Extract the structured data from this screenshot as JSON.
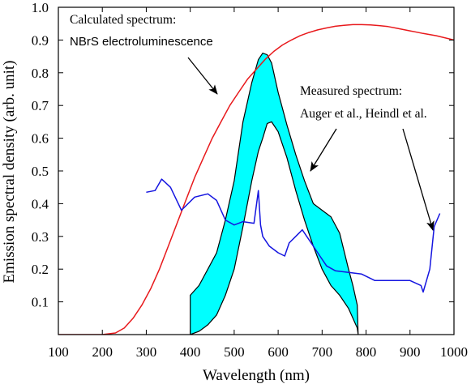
{
  "chart_data": {
    "type": "line",
    "xlabel": "Wavelength (nm)",
    "ylabel": "Emission spectral density (arb. unit)",
    "xlim": [
      100,
      1000
    ],
    "ylim": [
      0,
      1.0
    ],
    "x_ticks": [
      100,
      200,
      300,
      400,
      500,
      600,
      700,
      800,
      900,
      1000
    ],
    "y_ticks": [
      0.1,
      0.2,
      0.3,
      0.4,
      0.5,
      0.6,
      0.7,
      0.8,
      0.9,
      1.0
    ],
    "x_tick_labels": [
      "100",
      "200",
      "300",
      "400",
      "500",
      "600",
      "700",
      "800",
      "900",
      "1000"
    ],
    "y_tick_labels": [
      "0.1",
      "0.2",
      "0.3",
      "0.4",
      "0.5",
      "0.6",
      "0.7",
      "0.8",
      "0.9",
      "1.0"
    ],
    "grid": false,
    "series": [
      {
        "name": "Calculated spectrum",
        "kind": "line",
        "color": "#e8191c",
        "x": [
          100,
          200,
          230,
          250,
          270,
          290,
          310,
          330,
          350,
          370,
          390,
          410,
          430,
          450,
          470,
          490,
          510,
          530,
          550,
          570,
          590,
          610,
          630,
          650,
          670,
          690,
          710,
          730,
          750,
          770,
          790,
          810,
          830,
          850,
          870,
          900,
          930,
          960,
          1000
        ],
        "y": [
          0.0,
          0.0,
          0.005,
          0.02,
          0.05,
          0.09,
          0.14,
          0.2,
          0.27,
          0.34,
          0.41,
          0.48,
          0.54,
          0.6,
          0.65,
          0.7,
          0.74,
          0.78,
          0.81,
          0.84,
          0.865,
          0.885,
          0.9,
          0.913,
          0.923,
          0.931,
          0.937,
          0.942,
          0.945,
          0.947,
          0.947,
          0.946,
          0.944,
          0.941,
          0.936,
          0.928,
          0.92,
          0.913,
          0.9
        ]
      },
      {
        "name": "Measured spectrum (upper bound)",
        "kind": "band-upper",
        "color": "#00ffff",
        "x": [
          400,
          420,
          440,
          460,
          480,
          500,
          520,
          540,
          555,
          565,
          575,
          585,
          600,
          620,
          640,
          660,
          680,
          700,
          720,
          740,
          760,
          770,
          780,
          782
        ],
        "y": [
          0.12,
          0.15,
          0.2,
          0.25,
          0.35,
          0.47,
          0.65,
          0.77,
          0.84,
          0.86,
          0.855,
          0.83,
          0.74,
          0.64,
          0.55,
          0.47,
          0.4,
          0.38,
          0.36,
          0.31,
          0.2,
          0.15,
          0.09,
          0.0
        ]
      },
      {
        "name": "Measured spectrum (lower bound)",
        "kind": "band-lower",
        "color": "#00ffff",
        "x": [
          400,
          420,
          440,
          460,
          480,
          500,
          520,
          540,
          555,
          565,
          575,
          585,
          600,
          620,
          640,
          660,
          680,
          700,
          720,
          740,
          760,
          770,
          780,
          782
        ],
        "y": [
          0.0,
          0.01,
          0.03,
          0.06,
          0.12,
          0.2,
          0.33,
          0.47,
          0.56,
          0.6,
          0.645,
          0.65,
          0.62,
          0.54,
          0.44,
          0.35,
          0.27,
          0.2,
          0.15,
          0.12,
          0.08,
          0.05,
          0.02,
          0.0
        ]
      },
      {
        "name": "Measured spectrum (blue)",
        "kind": "line",
        "color": "#1515e0",
        "x": [
          300,
          320,
          335,
          355,
          380,
          410,
          440,
          460,
          480,
          500,
          520,
          545,
          555,
          560,
          565,
          580,
          600,
          615,
          625,
          640,
          655,
          670,
          690,
          710,
          730,
          760,
          790,
          820,
          860,
          900,
          925,
          930,
          945,
          955,
          968
        ],
        "y": [
          0.435,
          0.44,
          0.475,
          0.45,
          0.38,
          0.42,
          0.43,
          0.41,
          0.35,
          0.335,
          0.345,
          0.34,
          0.44,
          0.335,
          0.3,
          0.27,
          0.25,
          0.24,
          0.28,
          0.3,
          0.32,
          0.29,
          0.25,
          0.21,
          0.195,
          0.19,
          0.185,
          0.165,
          0.165,
          0.165,
          0.15,
          0.13,
          0.2,
          0.33,
          0.37
        ]
      }
    ],
    "annotations": [
      {
        "id": "calc",
        "lines": [
          "Calculated spectrum:",
          "NBrS electroluminescence"
        ]
      },
      {
        "id": "meas",
        "lines": [
          "Measured spectrum:",
          "Auger et al., Heindl et al."
        ]
      }
    ]
  }
}
